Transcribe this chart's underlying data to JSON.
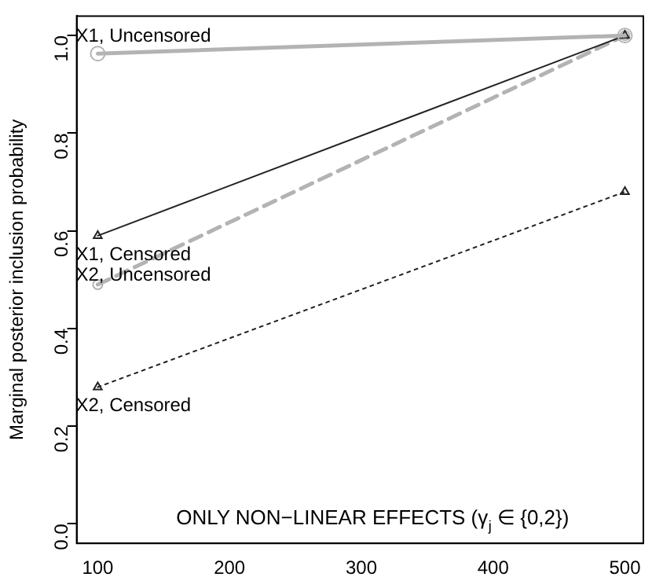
{
  "chart_data": {
    "type": "line",
    "ylabel": "Marginal posterior inclusion probability",
    "x": [
      100,
      500
    ],
    "xlim": [
      84,
      514
    ],
    "xticks": [
      100,
      200,
      300,
      400,
      500
    ],
    "ylim": [
      -0.04,
      1.04
    ],
    "yticks": [
      {
        "value": 0,
        "label": "0.0"
      },
      0.2,
      0.4,
      0.6,
      0.8,
      {
        "value": 1,
        "label": "1.0"
      }
    ],
    "grid": false,
    "legend": false,
    "series": [
      {
        "name": "X1, Uncensored",
        "color": "#b3b3b3",
        "values": [
          0.963,
          1.0
        ],
        "marker": "circle",
        "line_style": "solid"
      },
      {
        "name": "X1, Censored",
        "color": "#222222",
        "values": [
          0.59,
          1.0
        ],
        "marker": "triangle",
        "line_style": "solid"
      },
      {
        "name": "X2, Uncensored",
        "color": "#b3b3b3",
        "values": [
          0.49,
          1.0
        ],
        "marker": "circle",
        "line_style": "dashed"
      },
      {
        "name": "X2, Censored",
        "color": "#222222",
        "values": [
          0.28,
          0.68
        ],
        "marker": "triangle",
        "line_style": "dotted"
      }
    ],
    "annotations": [
      "ONLY NON−LINEAR EFFECTS (γ$_{j}$ ∈ {0,2})"
    ]
  }
}
